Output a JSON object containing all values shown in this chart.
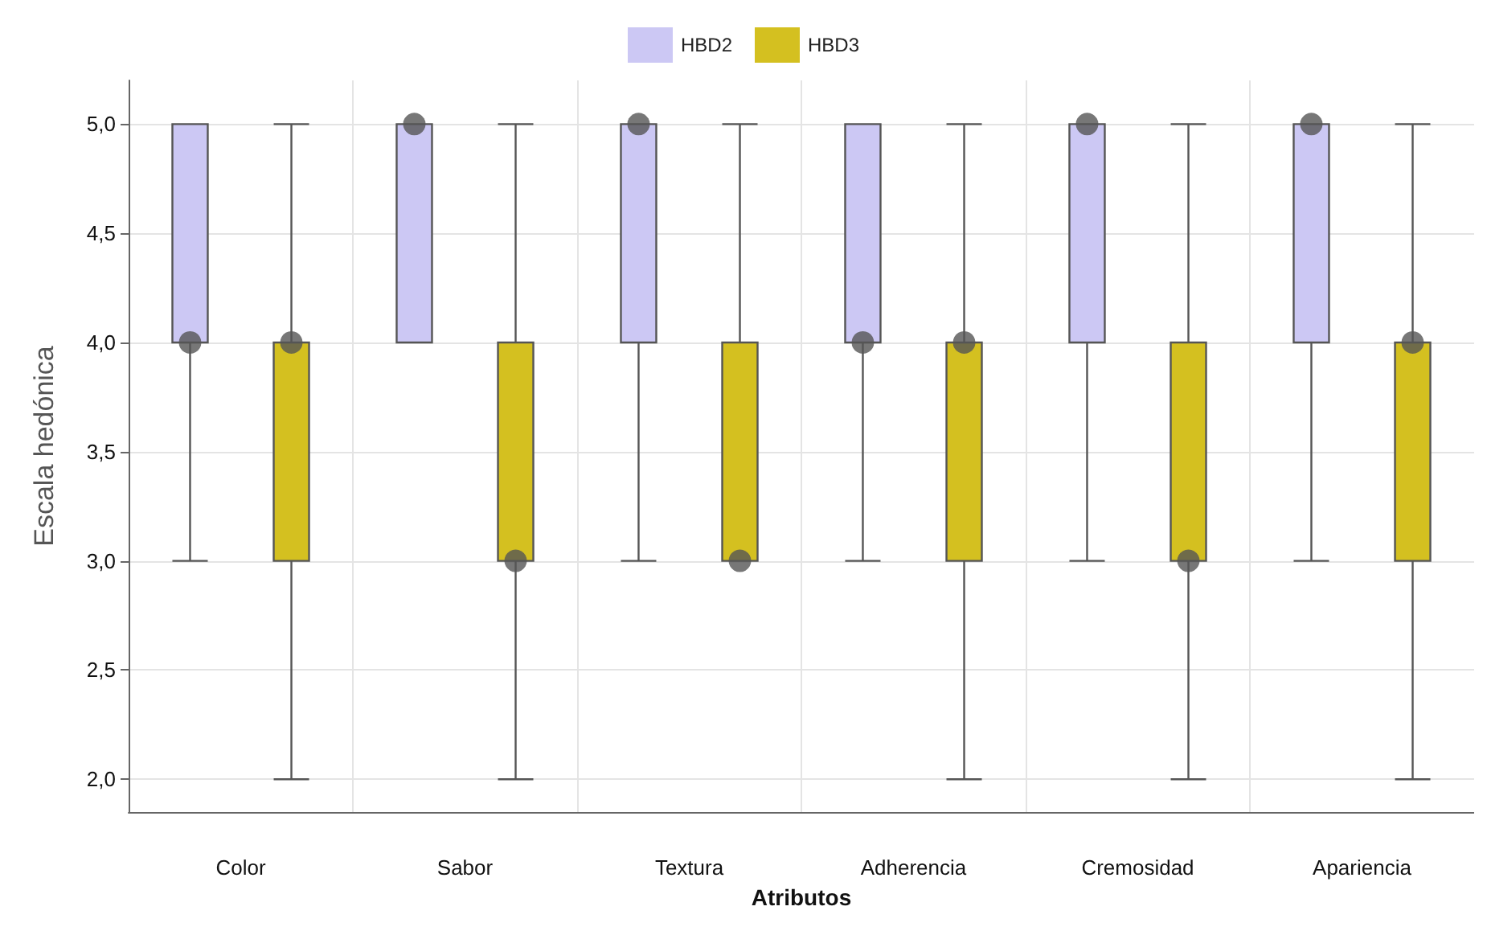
{
  "chart_data": {
    "type": "box",
    "xlabel": "Atributos",
    "ylabel": "Escala hedónica",
    "categories": [
      "Color",
      "Sabor",
      "Textura",
      "Adherencia",
      "Cremosidad",
      "Apariencia"
    ],
    "series": [
      {
        "name": "HBD2",
        "color": "#ccc8f4",
        "boxes": [
          {
            "low": 3,
            "q1": 4,
            "median": 4,
            "q3": 5,
            "high": 5,
            "mean": 4
          },
          {
            "low": 4,
            "q1": 4,
            "median": 5,
            "q3": 5,
            "high": 5,
            "mean": 5
          },
          {
            "low": 3,
            "q1": 4,
            "median": 5,
            "q3": 5,
            "high": 5,
            "mean": 5
          },
          {
            "low": 3,
            "q1": 4,
            "median": 4,
            "q3": 5,
            "high": 5,
            "mean": 4
          },
          {
            "low": 3,
            "q1": 4,
            "median": 5,
            "q3": 5,
            "high": 5,
            "mean": 5
          },
          {
            "low": 3,
            "q1": 4,
            "median": 5,
            "q3": 5,
            "high": 5,
            "mean": 5
          }
        ]
      },
      {
        "name": "HBD3",
        "color": "#d4c020",
        "boxes": [
          {
            "low": 2,
            "q1": 3,
            "median": 4,
            "q3": 4,
            "high": 5,
            "mean": 4
          },
          {
            "low": 2,
            "q1": 3,
            "median": 3,
            "q3": 4,
            "high": 5,
            "mean": 3
          },
          {
            "low": 3,
            "q1": 3,
            "median": 3,
            "q3": 4,
            "high": 5,
            "mean": 3
          },
          {
            "low": 2,
            "q1": 3,
            "median": 4,
            "q3": 4,
            "high": 5,
            "mean": 4
          },
          {
            "low": 2,
            "q1": 3,
            "median": 3,
            "q3": 4,
            "high": 5,
            "mean": 3
          },
          {
            "low": 2,
            "q1": 3,
            "median": 4,
            "q3": 4,
            "high": 5,
            "mean": 4
          }
        ]
      }
    ],
    "ylim": [
      1.85,
      5.2
    ],
    "yticks": [
      {
        "value": 2,
        "label": "2,0"
      },
      {
        "value": 2.5,
        "label": "2,5"
      },
      {
        "value": 3,
        "label": "3,0"
      },
      {
        "value": 3.5,
        "label": "3,5"
      },
      {
        "value": 4,
        "label": "4,0"
      },
      {
        "value": 4.5,
        "label": "4,5"
      },
      {
        "value": 5,
        "label": "5,0"
      }
    ],
    "grid": true,
    "legend": "top",
    "marker": "circle"
  }
}
